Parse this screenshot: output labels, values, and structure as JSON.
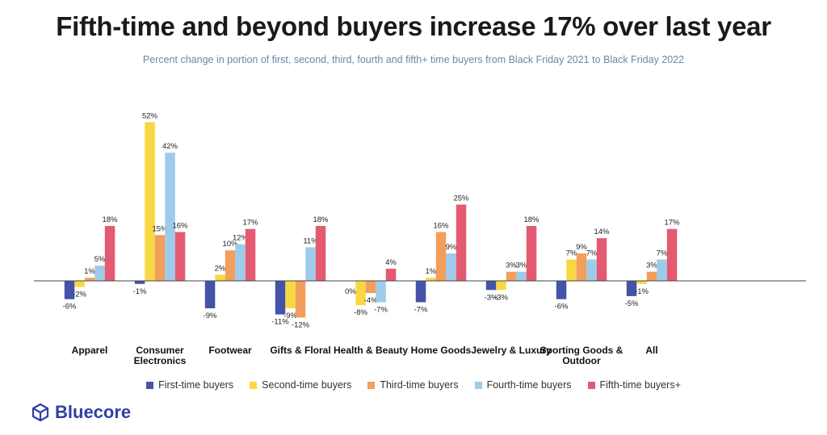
{
  "chart_data": {
    "type": "bar",
    "title": "Fifth-time and beyond buyers increase 17% over last year",
    "subtitle": "Percent change in portion of first, second, third, fourth and fifth+ time buyers from Black Friday 2021 to Black Friday 2022",
    "categories": [
      "Apparel",
      "Consumer Electronics",
      "Footwear",
      "Gifts & Floral",
      "Health & Beauty",
      "Home Goods",
      "Jewelry & Luxury",
      "Sporting Goods & Outdoor",
      "All"
    ],
    "series": [
      {
        "name": "First-time buyers",
        "color": "#4453a8",
        "values": [
          -6,
          -1,
          -9,
          -11,
          0,
          -7,
          -3,
          -6,
          -5
        ]
      },
      {
        "name": "Second-time buyers",
        "color": "#f7d843",
        "values": [
          -2,
          52,
          2,
          -9,
          -8,
          1,
          -3,
          7,
          -1
        ]
      },
      {
        "name": "Third-time buyers",
        "color": "#f29e5c",
        "values": [
          1,
          15,
          10,
          -12,
          -4,
          16,
          3,
          9,
          3
        ]
      },
      {
        "name": "Fourth-time buyers",
        "color": "#9fcbea",
        "values": [
          5,
          42,
          12,
          11,
          -7,
          9,
          3,
          7,
          7
        ]
      },
      {
        "name": "Fifth-time buyers+",
        "color": "#e45a70",
        "values": [
          18,
          16,
          17,
          18,
          4,
          25,
          18,
          14,
          17
        ]
      }
    ],
    "data_labels": [
      [
        "-6%",
        "-1%",
        "-9%",
        "-11%",
        "",
        "-7%",
        "-3%",
        "-6%",
        "-5%"
      ],
      [
        "-2%",
        "52%",
        "2%",
        "-9%",
        "-8%",
        "1%",
        "-3%",
        "7%",
        "-1%"
      ],
      [
        "1%",
        "15%",
        "10%",
        "-12%",
        "-4%",
        "16%",
        "3%",
        "9%",
        "3%"
      ],
      [
        "5%",
        "42%",
        "12%",
        "11%",
        "-7%",
        "9%",
        "3%",
        "7%",
        "7%"
      ],
      [
        "18%",
        "16%",
        "17%",
        "18%",
        "4%",
        "25%",
        "18%",
        "14%",
        "17%"
      ]
    ],
    "extra_label": {
      "category": 4,
      "text": "0%"
    },
    "grid": false,
    "legend_position": "bottom"
  },
  "brand": {
    "name": "Bluecore",
    "color": "#2f3fa6",
    "icon": "cube-logo-icon"
  }
}
